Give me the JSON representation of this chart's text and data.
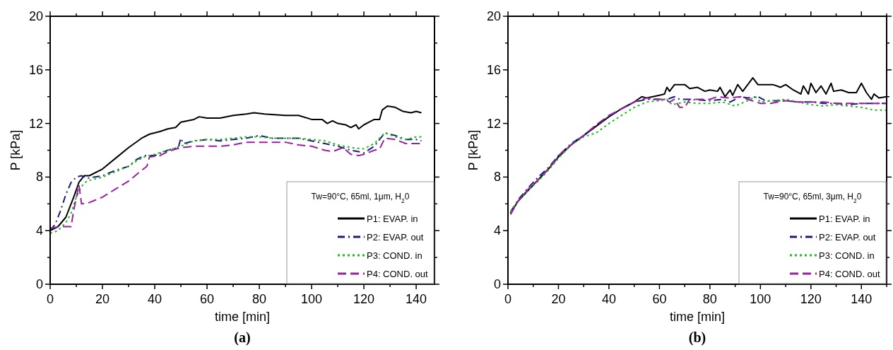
{
  "chart_data": [
    {
      "type": "line",
      "annotations": [
        "(a)"
      ],
      "xlabel": "time [min]",
      "ylabel": "P [kPa]",
      "legend_title": "Tw=90°C, 65ml, 1μm, H$_{2}$0",
      "legend": "bottom right",
      "grid": false,
      "xlim": [
        0,
        147
      ],
      "ylim": [
        0,
        20
      ],
      "xticks": [
        0,
        {
          "value": 10,
          "label": null
        },
        20,
        {
          "value": 30,
          "label": null
        },
        40,
        {
          "value": 50,
          "label": null
        },
        60,
        {
          "value": 70,
          "label": null
        },
        80,
        {
          "value": 90,
          "label": null
        },
        100,
        {
          "value": 110,
          "label": null
        },
        120,
        {
          "value": 130,
          "label": null
        },
        140
      ],
      "yticks": [
        0,
        {
          "value": 2,
          "label": null
        },
        4,
        {
          "value": 6,
          "label": null
        },
        8,
        {
          "value": 10,
          "label": null
        },
        12,
        {
          "value": 14,
          "label": null
        },
        16,
        {
          "value": 18,
          "label": null
        },
        20
      ],
      "series": [
        {
          "name": "P1: EVAP. in",
          "color": "#000000",
          "line_style": "solid",
          "x": [
            0,
            3,
            6,
            9,
            11,
            13,
            15,
            20,
            25,
            30,
            35,
            38,
            42,
            45,
            48,
            50,
            55,
            57,
            60,
            65,
            70,
            75,
            78,
            82,
            90,
            95,
            100,
            104,
            106,
            108,
            110,
            113,
            115,
            117,
            118,
            120,
            122,
            124,
            126,
            127,
            129,
            132,
            135,
            138,
            140,
            142
          ],
          "values": [
            4.0,
            4.3,
            5.0,
            6.5,
            7.6,
            8.1,
            8.1,
            8.6,
            9.4,
            10.2,
            10.9,
            11.2,
            11.4,
            11.6,
            11.7,
            12.1,
            12.3,
            12.5,
            12.4,
            12.4,
            12.6,
            12.7,
            12.8,
            12.7,
            12.6,
            12.6,
            12.3,
            12.3,
            12.0,
            12.2,
            12.0,
            11.9,
            11.7,
            11.9,
            11.6,
            11.9,
            12.1,
            12.3,
            12.3,
            13.0,
            13.3,
            13.2,
            12.9,
            12.8,
            12.9,
            12.8
          ]
        },
        {
          "name": "P2: EVAP. out",
          "color": "#1c1c78",
          "line_style": "dashdot",
          "x": [
            0,
            2,
            4,
            6,
            8,
            10,
            12,
            14,
            20,
            25,
            30,
            33,
            36,
            40,
            45,
            49,
            50,
            51,
            55,
            60,
            65,
            70,
            75,
            80,
            85,
            90,
            95,
            100,
            105,
            110,
            115,
            118,
            120,
            124,
            128,
            132,
            136,
            140,
            142
          ],
          "values": [
            4.0,
            4.5,
            5.5,
            6.7,
            7.6,
            8.0,
            8.1,
            7.9,
            8.1,
            8.5,
            8.8,
            9.3,
            9.6,
            9.6,
            10.0,
            10.2,
            10.9,
            10.5,
            10.7,
            10.8,
            10.7,
            10.8,
            10.9,
            11.1,
            10.9,
            10.9,
            10.9,
            10.7,
            10.5,
            10.3,
            10.0,
            9.9,
            9.8,
            10.3,
            11.3,
            11.1,
            10.8,
            10.8,
            10.7
          ]
        },
        {
          "name": "P3: COND. in",
          "color": "#22bb22",
          "line_style": "dotted",
          "x": [
            0,
            3,
            6,
            8,
            10,
            12,
            14,
            20,
            25,
            30,
            33,
            36,
            40,
            45,
            50,
            55,
            60,
            65,
            70,
            75,
            80,
            85,
            90,
            95,
            100,
            105,
            110,
            115,
            120,
            124,
            128,
            132,
            136,
            140,
            142
          ],
          "values": [
            3.8,
            4.0,
            4.6,
            5.3,
            6.5,
            7.3,
            7.7,
            8.0,
            8.4,
            8.8,
            9.2,
            9.5,
            9.7,
            10.0,
            10.3,
            10.7,
            10.8,
            10.8,
            10.9,
            11.0,
            11.0,
            10.9,
            10.9,
            10.9,
            10.8,
            10.7,
            10.4,
            10.2,
            10.1,
            10.5,
            11.3,
            11.0,
            10.8,
            11.0,
            11.0
          ]
        },
        {
          "name": "P4: COND. out",
          "color": "#9b1fa0",
          "line_style": "dashed",
          "x": [
            0,
            4,
            8,
            9,
            11,
            12,
            15,
            20,
            25,
            30,
            35,
            37,
            38,
            42,
            45,
            50,
            55,
            60,
            65,
            70,
            75,
            80,
            85,
            90,
            95,
            100,
            105,
            108,
            112,
            115,
            118,
            120,
            124,
            126,
            128,
            132,
            136,
            140,
            142
          ],
          "values": [
            4.2,
            4.3,
            4.3,
            5.5,
            7.4,
            6.0,
            6.1,
            6.5,
            7.1,
            7.7,
            8.5,
            8.8,
            9.5,
            9.6,
            9.9,
            10.2,
            10.3,
            10.3,
            10.3,
            10.4,
            10.6,
            10.6,
            10.6,
            10.6,
            10.4,
            10.3,
            10.0,
            9.9,
            10.2,
            9.7,
            9.6,
            9.7,
            10.0,
            10.1,
            10.9,
            10.8,
            10.5,
            10.5,
            10.5
          ]
        }
      ]
    },
    {
      "type": "line",
      "annotations": [
        "(b)"
      ],
      "xlabel": "time [min]",
      "ylabel": "P [kPa]",
      "legend_title": "Tw=90°C, 65ml, 3μm, H$_{2}$0",
      "legend": "bottom right",
      "grid": false,
      "xlim": [
        0,
        150
      ],
      "ylim": [
        0,
        20
      ],
      "xticks": [
        0,
        {
          "value": 10,
          "label": null
        },
        20,
        {
          "value": 30,
          "label": null
        },
        40,
        {
          "value": 50,
          "label": null
        },
        60,
        {
          "value": 70,
          "label": null
        },
        80,
        {
          "value": 90,
          "label": null
        },
        100,
        {
          "value": 110,
          "label": null
        },
        120,
        {
          "value": 130,
          "label": null
        },
        140,
        {
          "value": 150,
          "label": null
        }
      ],
      "yticks": [
        0,
        {
          "value": 2,
          "label": null
        },
        4,
        {
          "value": 6,
          "label": null
        },
        8,
        {
          "value": 10,
          "label": null
        },
        12,
        {
          "value": 14,
          "label": null
        },
        16,
        {
          "value": 18,
          "label": null
        },
        20
      ],
      "series": [
        {
          "name": "P1: EVAP. in",
          "color": "#000000",
          "line_style": "solid",
          "x": [
            1,
            4,
            8,
            12,
            16,
            20,
            25,
            30,
            35,
            40,
            45,
            50,
            53,
            55,
            60,
            62,
            63,
            64,
            66,
            70,
            72,
            75,
            78,
            80,
            83,
            84,
            86,
            88,
            89,
            91,
            93,
            95,
            97,
            99,
            105,
            108,
            110,
            113,
            116,
            117,
            119,
            120,
            122,
            124,
            126,
            128,
            129,
            132,
            135,
            138,
            140,
            142,
            144,
            145,
            147,
            150
          ],
          "values": [
            5.3,
            6.2,
            7.0,
            7.8,
            8.6,
            9.5,
            10.4,
            11.1,
            11.8,
            12.5,
            13.1,
            13.6,
            14.0,
            13.9,
            14.1,
            14.2,
            14.7,
            14.4,
            14.9,
            14.9,
            14.6,
            14.7,
            14.4,
            14.5,
            14.4,
            14.7,
            14.0,
            14.5,
            14.1,
            14.9,
            14.4,
            14.9,
            15.4,
            14.9,
            14.9,
            14.7,
            14.9,
            14.5,
            14.2,
            14.8,
            14.2,
            15.0,
            14.3,
            14.8,
            14.2,
            15.0,
            14.4,
            14.5,
            14.3,
            14.3,
            15.0,
            14.3,
            13.8,
            14.2,
            13.9,
            14.0
          ]
        },
        {
          "name": "P2: EVAP. out",
          "color": "#1c1c78",
          "line_style": "dashdot",
          "x": [
            1,
            4,
            8,
            12,
            16,
            20,
            25,
            30,
            35,
            40,
            45,
            50,
            55,
            60,
            63,
            66,
            68,
            72,
            80,
            85,
            88,
            92,
            95,
            99,
            102,
            110,
            115,
            120,
            125,
            130,
            135,
            140,
            145,
            150
          ],
          "values": [
            5.4,
            6.3,
            7.2,
            8.0,
            8.7,
            9.6,
            10.5,
            11.1,
            11.9,
            12.5,
            13.1,
            13.6,
            13.8,
            13.8,
            13.8,
            14.0,
            13.8,
            13.8,
            13.7,
            13.8,
            13.6,
            14.0,
            13.9,
            14.0,
            13.7,
            13.7,
            13.6,
            13.6,
            13.5,
            13.5,
            13.4,
            13.5,
            13.5,
            13.5
          ]
        },
        {
          "name": "P3: COND. in",
          "color": "#22bb22",
          "line_style": "dotted",
          "x": [
            1,
            4,
            8,
            12,
            16,
            20,
            25,
            30,
            35,
            40,
            45,
            50,
            55,
            60,
            63,
            65,
            70,
            75,
            80,
            85,
            90,
            95,
            98,
            100,
            105,
            110,
            115,
            120,
            125,
            130,
            135,
            140,
            145,
            150
          ],
          "values": [
            5.4,
            6.2,
            7.0,
            7.7,
            8.5,
            9.4,
            10.4,
            11.0,
            11.3,
            12.0,
            12.6,
            13.2,
            13.6,
            13.7,
            13.8,
            13.4,
            13.6,
            13.5,
            13.5,
            13.6,
            13.3,
            13.7,
            14.0,
            13.6,
            13.7,
            13.8,
            13.6,
            13.4,
            13.3,
            13.4,
            13.3,
            13.2,
            13.0,
            13.0
          ]
        },
        {
          "name": "P4: COND. out",
          "color": "#9b1fa0",
          "line_style": "dashed",
          "x": [
            1,
            4,
            8,
            12,
            16,
            20,
            25,
            30,
            35,
            40,
            45,
            50,
            55,
            60,
            62,
            64,
            66,
            68,
            70,
            72,
            80,
            83,
            88,
            92,
            95,
            100,
            104,
            110,
            115,
            120,
            125,
            130,
            140,
            150
          ],
          "values": [
            5.2,
            6.2,
            7.1,
            7.8,
            8.6,
            9.6,
            10.4,
            11.1,
            11.9,
            12.6,
            13.1,
            13.6,
            13.9,
            13.8,
            13.8,
            13.6,
            13.8,
            13.2,
            13.2,
            13.8,
            13.8,
            14.0,
            13.9,
            14.0,
            13.8,
            13.5,
            13.5,
            13.7,
            13.6,
            13.6,
            13.6,
            13.5,
            13.5,
            13.5
          ]
        }
      ]
    }
  ]
}
